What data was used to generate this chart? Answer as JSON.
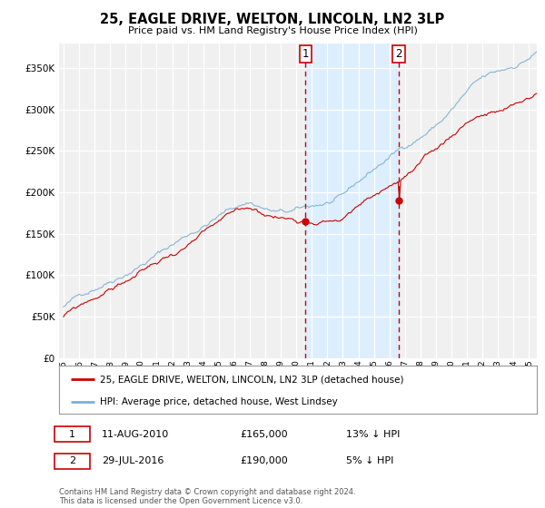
{
  "title": "25, EAGLE DRIVE, WELTON, LINCOLN, LN2 3LP",
  "subtitle": "Price paid vs. HM Land Registry's House Price Index (HPI)",
  "legend_line1": "25, EAGLE DRIVE, WELTON, LINCOLN, LN2 3LP (detached house)",
  "legend_line2": "HPI: Average price, detached house, West Lindsey",
  "footnote": "Contains HM Land Registry data © Crown copyright and database right 2024.\nThis data is licensed under the Open Government Licence v3.0.",
  "transaction1_label": "1",
  "transaction1_date": "11-AUG-2010",
  "transaction1_price": "£165,000",
  "transaction1_hpi": "13% ↓ HPI",
  "transaction2_label": "2",
  "transaction2_date": "29-JUL-2016",
  "transaction2_price": "£190,000",
  "transaction2_hpi": "5% ↓ HPI",
  "red_color": "#cc0000",
  "blue_color": "#7ab0d4",
  "dashed_line_color": "#cc0000",
  "shaded_color": "#ddeeff",
  "background_color": "#f0f0f0",
  "ylim": [
    0,
    380000
  ],
  "yticks": [
    0,
    50000,
    100000,
    150000,
    200000,
    250000,
    300000,
    350000
  ],
  "xlabel_years": [
    "1995",
    "1996",
    "1997",
    "1998",
    "1999",
    "2000",
    "2001",
    "2002",
    "2003",
    "2004",
    "2005",
    "2006",
    "2007",
    "2008",
    "2009",
    "2010",
    "2011",
    "2012",
    "2013",
    "2014",
    "2015",
    "2016",
    "2017",
    "2018",
    "2019",
    "2020",
    "2021",
    "2022",
    "2023",
    "2024",
    "2025"
  ],
  "transaction1_x": 2010.6,
  "transaction2_x": 2016.6,
  "marker1_y": 165000,
  "marker2_y": 190000,
  "xlim_left": 1994.7,
  "xlim_right": 2025.5
}
